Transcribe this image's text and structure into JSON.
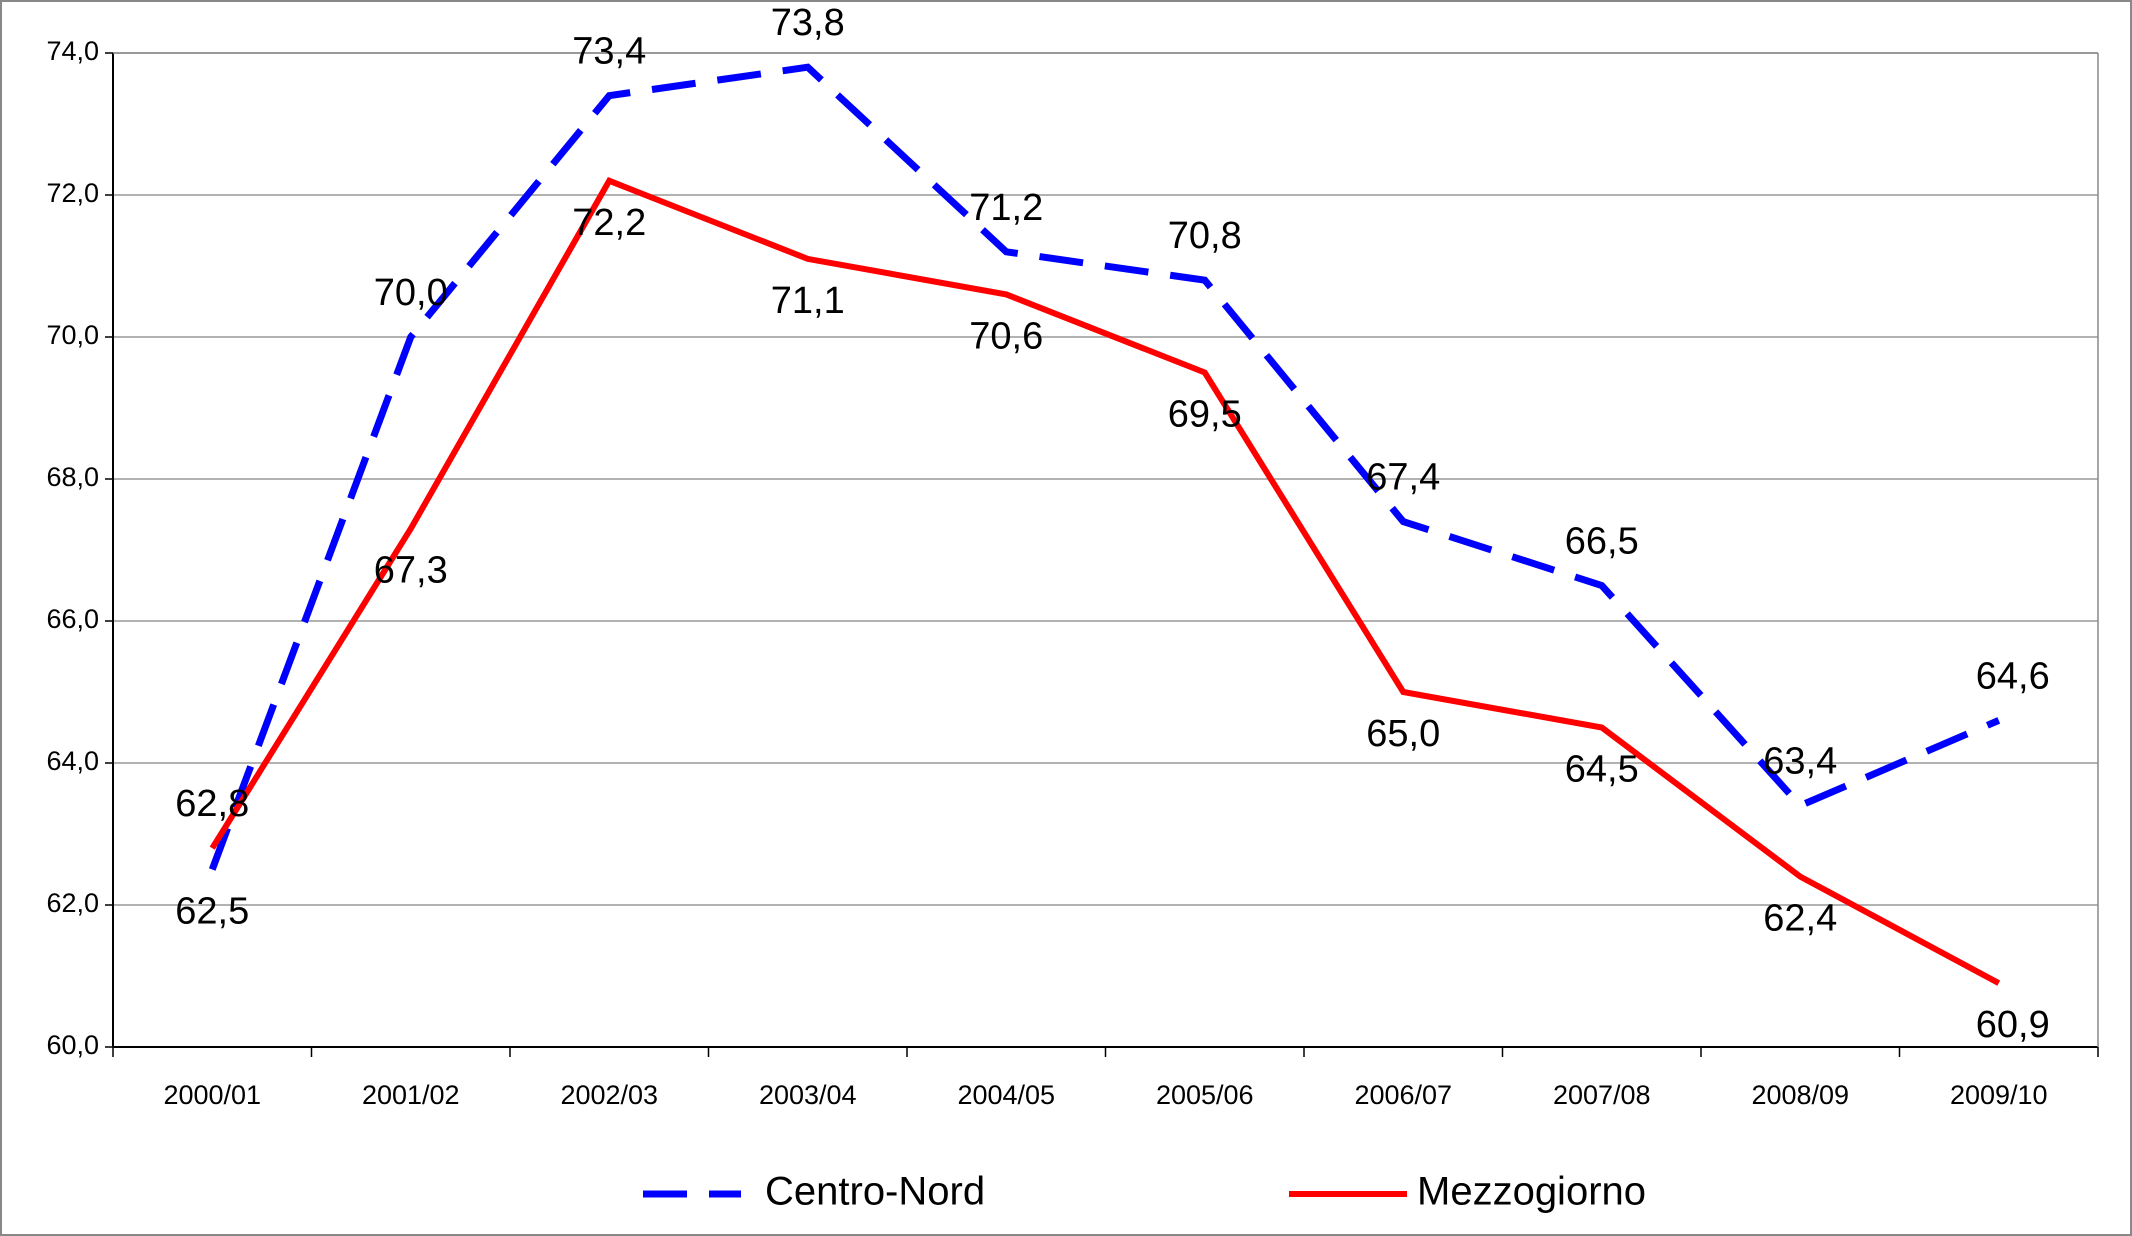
{
  "chart_data": {
    "type": "line",
    "categories": [
      "2000/01",
      "2001/02",
      "2002/03",
      "2003/04",
      "2004/05",
      "2005/06",
      "2006/07",
      "2007/08",
      "2008/09",
      "2009/10"
    ],
    "series": [
      {
        "name": "Centro-Nord",
        "color": "#0000ff",
        "dashed": true,
        "values": [
          62.5,
          70.0,
          73.4,
          73.8,
          71.2,
          70.8,
          67.4,
          66.5,
          63.4,
          64.6
        ],
        "value_labels": [
          "62,5",
          "70,0",
          "73,4",
          "73,8",
          "71,2",
          "70,8",
          "67,4",
          "66,5",
          "63,4",
          "64,6"
        ]
      },
      {
        "name": "Mezzogiorno",
        "color": "#ff0000",
        "dashed": false,
        "values": [
          62.8,
          67.3,
          72.2,
          71.1,
          70.6,
          69.5,
          65.0,
          64.5,
          62.4,
          60.9
        ],
        "value_labels": [
          "62,8",
          "67,3",
          "72,2",
          "71,1",
          "70,6",
          "69,5",
          "65,0",
          "64,5",
          "62,4",
          "60,9"
        ]
      }
    ],
    "ylim": [
      60,
      74
    ],
    "yticks": [
      {
        "value": 60,
        "label": "60,0"
      },
      {
        "value": 62,
        "label": "62,0"
      },
      {
        "value": 64,
        "label": "64,0"
      },
      {
        "value": 66,
        "label": "66,0"
      },
      {
        "value": 68,
        "label": "68,0"
      },
      {
        "value": 70,
        "label": "70,0"
      },
      {
        "value": 72,
        "label": "72,0"
      },
      {
        "value": 74,
        "label": "74,0"
      }
    ],
    "grid": true,
    "legend": "bottom"
  }
}
